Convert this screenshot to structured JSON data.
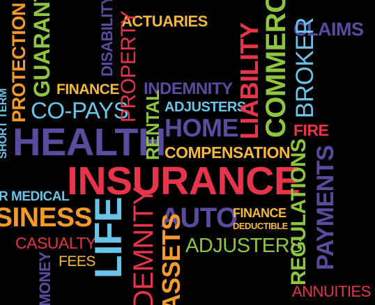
{
  "background": "#000000",
  "colors": {
    "yellow": "#F5B83A",
    "red": "#E8344A",
    "purple": "#5B4B9E",
    "blue": "#6BC4E8",
    "green": "#8DC540",
    "orange": "#F39A2B"
  },
  "words": {
    "actuaries": "ACTUARIES",
    "disability": "DISABILITY",
    "guarantee": "GUARANTEE",
    "protection": "PROTECTION",
    "short_term": "SHORT TERM",
    "finance_top": "FINANCE",
    "property": "PROPERTY",
    "indemnity_top": "INDEMNITY",
    "co_pays": "CO-PAYS",
    "adjusters_top": "ADJUSTERS",
    "health": "HEALTH",
    "rental": "RENTAL",
    "home": "HOME",
    "liability": "LIABILITY",
    "commercial": "COMMERCIAL",
    "claims": "CLAIMS",
    "broker": "BROKER",
    "fire": "FIRE",
    "compensation": "COMPENSATION",
    "insurance": "INSURANCE",
    "medical": "R MEDICAL",
    "business": "SINESS",
    "life": "LIFE",
    "indemnity_bottom": "DEMNITY",
    "auto": "AUTO",
    "finance_bottom": "FINANCE",
    "deductible": "DEDUCTIBLE",
    "casualty": "CASUALTY",
    "assets": "ASSETS",
    "adjusters_bottom": "ADJUSTERS",
    "regulations": "REGULATIONS",
    "payments": "PAYMENTS",
    "fees": "FEES",
    "money": "MONEY",
    "annuities": "ANNUITIES"
  }
}
